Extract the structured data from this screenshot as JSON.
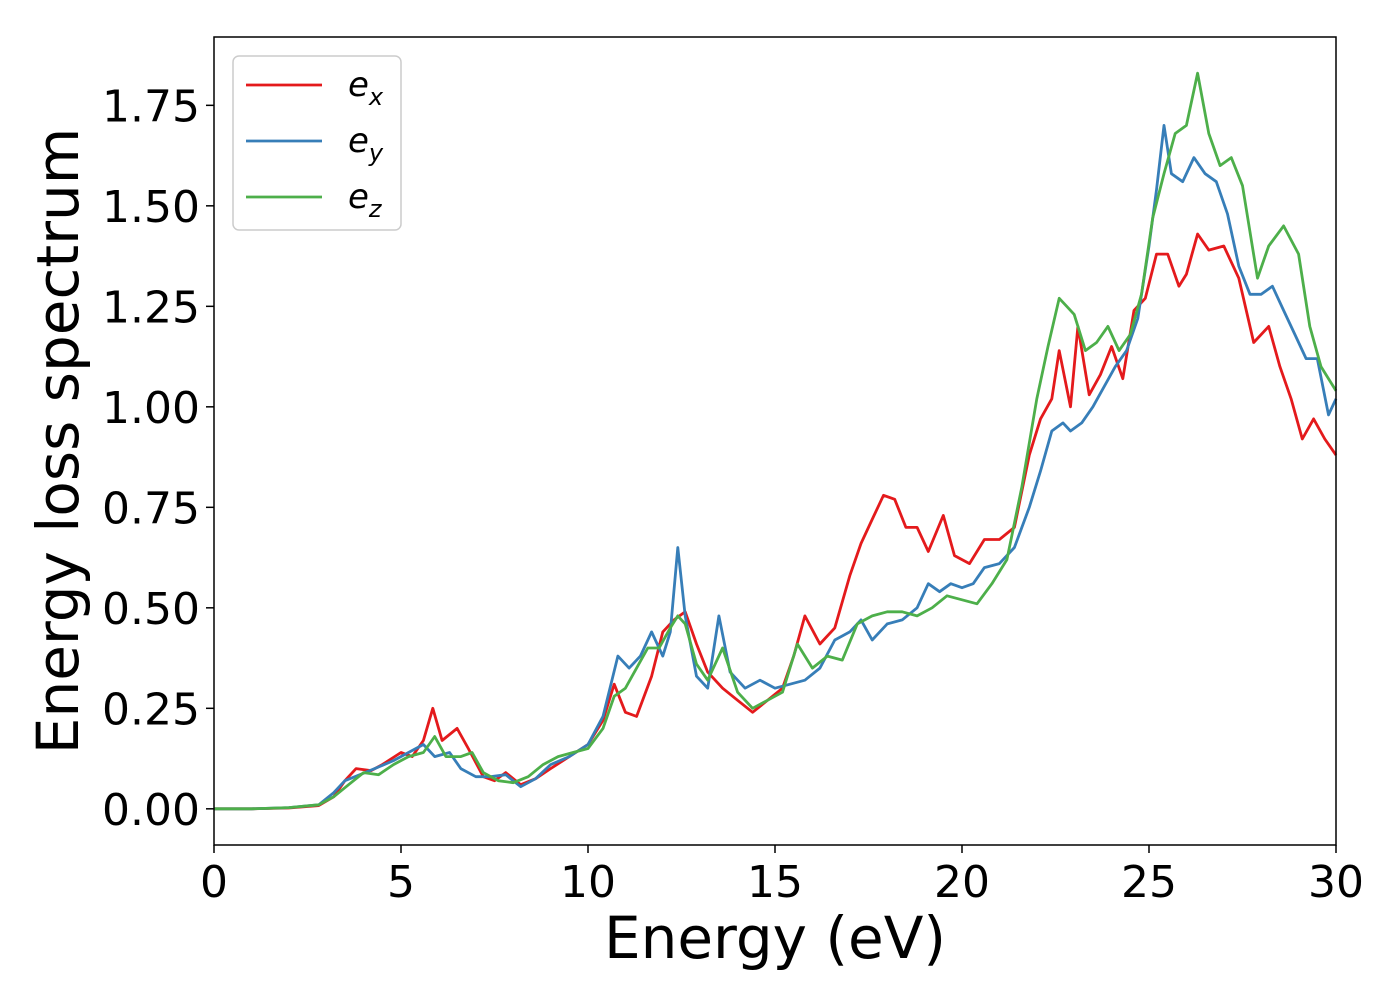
{
  "chart_data": {
    "type": "line",
    "title": "",
    "xlabel": "Energy (eV)",
    "ylabel": "Energy loss spectrum",
    "xlim": [
      0,
      30
    ],
    "ylim": [
      -0.09,
      1.92
    ],
    "xticks": [
      "0",
      "5",
      "10",
      "15",
      "20",
      "25",
      "30"
    ],
    "yticks": [
      "0.00",
      "0.25",
      "0.50",
      "0.75",
      "1.00",
      "1.25",
      "1.50",
      "1.75"
    ],
    "grid": false,
    "legend_position": "top-left",
    "series": [
      {
        "name": "e",
        "sub": "x",
        "color": "#e41a1c",
        "points": [
          [
            0,
            0
          ],
          [
            1,
            0
          ],
          [
            2,
            0.002
          ],
          [
            2.8,
            0.008
          ],
          [
            3.2,
            0.03
          ],
          [
            3.5,
            0.07
          ],
          [
            3.8,
            0.1
          ],
          [
            4.2,
            0.095
          ],
          [
            4.5,
            0.11
          ],
          [
            5.0,
            0.14
          ],
          [
            5.3,
            0.13
          ],
          [
            5.6,
            0.17
          ],
          [
            5.85,
            0.25
          ],
          [
            6.1,
            0.17
          ],
          [
            6.5,
            0.2
          ],
          [
            6.8,
            0.15
          ],
          [
            7.2,
            0.08
          ],
          [
            7.5,
            0.07
          ],
          [
            7.8,
            0.09
          ],
          [
            8.2,
            0.06
          ],
          [
            8.6,
            0.075
          ],
          [
            9.0,
            0.1
          ],
          [
            9.5,
            0.13
          ],
          [
            10.0,
            0.16
          ],
          [
            10.4,
            0.22
          ],
          [
            10.7,
            0.31
          ],
          [
            11.0,
            0.24
          ],
          [
            11.3,
            0.23
          ],
          [
            11.7,
            0.33
          ],
          [
            12.0,
            0.44
          ],
          [
            12.3,
            0.47
          ],
          [
            12.6,
            0.49
          ],
          [
            12.9,
            0.41
          ],
          [
            13.2,
            0.34
          ],
          [
            13.6,
            0.3
          ],
          [
            14.0,
            0.27
          ],
          [
            14.4,
            0.24
          ],
          [
            14.8,
            0.27
          ],
          [
            15.2,
            0.3
          ],
          [
            15.5,
            0.38
          ],
          [
            15.8,
            0.48
          ],
          [
            16.2,
            0.41
          ],
          [
            16.6,
            0.45
          ],
          [
            17.0,
            0.58
          ],
          [
            17.3,
            0.66
          ],
          [
            17.6,
            0.72
          ],
          [
            17.9,
            0.78
          ],
          [
            18.2,
            0.77
          ],
          [
            18.5,
            0.7
          ],
          [
            18.8,
            0.7
          ],
          [
            19.1,
            0.64
          ],
          [
            19.5,
            0.73
          ],
          [
            19.8,
            0.63
          ],
          [
            20.2,
            0.61
          ],
          [
            20.6,
            0.67
          ],
          [
            21.0,
            0.67
          ],
          [
            21.4,
            0.7
          ],
          [
            21.8,
            0.88
          ],
          [
            22.1,
            0.97
          ],
          [
            22.4,
            1.02
          ],
          [
            22.6,
            1.14
          ],
          [
            22.9,
            1.0
          ],
          [
            23.1,
            1.2
          ],
          [
            23.4,
            1.03
          ],
          [
            23.7,
            1.08
          ],
          [
            24.0,
            1.15
          ],
          [
            24.3,
            1.07
          ],
          [
            24.6,
            1.24
          ],
          [
            24.9,
            1.27
          ],
          [
            25.2,
            1.38
          ],
          [
            25.5,
            1.38
          ],
          [
            25.8,
            1.3
          ],
          [
            26.0,
            1.33
          ],
          [
            26.3,
            1.43
          ],
          [
            26.6,
            1.39
          ],
          [
            27.0,
            1.4
          ],
          [
            27.4,
            1.32
          ],
          [
            27.8,
            1.16
          ],
          [
            28.2,
            1.2
          ],
          [
            28.5,
            1.1
          ],
          [
            28.8,
            1.02
          ],
          [
            29.1,
            0.92
          ],
          [
            29.4,
            0.97
          ],
          [
            29.7,
            0.92
          ],
          [
            30.0,
            0.88
          ]
        ]
      },
      {
        "name": "e",
        "sub": "y",
        "color": "#377eb8",
        "points": [
          [
            0,
            0
          ],
          [
            1,
            0
          ],
          [
            2,
            0.003
          ],
          [
            2.8,
            0.01
          ],
          [
            3.2,
            0.04
          ],
          [
            3.5,
            0.07
          ],
          [
            3.9,
            0.085
          ],
          [
            4.3,
            0.1
          ],
          [
            4.8,
            0.12
          ],
          [
            5.2,
            0.14
          ],
          [
            5.6,
            0.16
          ],
          [
            5.9,
            0.13
          ],
          [
            6.3,
            0.14
          ],
          [
            6.6,
            0.1
          ],
          [
            7.0,
            0.08
          ],
          [
            7.4,
            0.08
          ],
          [
            7.8,
            0.085
          ],
          [
            8.2,
            0.055
          ],
          [
            8.6,
            0.075
          ],
          [
            9.0,
            0.11
          ],
          [
            9.5,
            0.13
          ],
          [
            10.0,
            0.16
          ],
          [
            10.4,
            0.23
          ],
          [
            10.8,
            0.38
          ],
          [
            11.1,
            0.35
          ],
          [
            11.4,
            0.38
          ],
          [
            11.7,
            0.44
          ],
          [
            12.0,
            0.38
          ],
          [
            12.2,
            0.44
          ],
          [
            12.4,
            0.65
          ],
          [
            12.6,
            0.48
          ],
          [
            12.9,
            0.33
          ],
          [
            13.2,
            0.3
          ],
          [
            13.5,
            0.48
          ],
          [
            13.8,
            0.34
          ],
          [
            14.2,
            0.3
          ],
          [
            14.6,
            0.32
          ],
          [
            15.0,
            0.3
          ],
          [
            15.4,
            0.31
          ],
          [
            15.8,
            0.32
          ],
          [
            16.2,
            0.35
          ],
          [
            16.6,
            0.42
          ],
          [
            17.0,
            0.44
          ],
          [
            17.3,
            0.47
          ],
          [
            17.6,
            0.42
          ],
          [
            18.0,
            0.46
          ],
          [
            18.4,
            0.47
          ],
          [
            18.8,
            0.5
          ],
          [
            19.1,
            0.56
          ],
          [
            19.4,
            0.54
          ],
          [
            19.7,
            0.56
          ],
          [
            20.0,
            0.55
          ],
          [
            20.3,
            0.56
          ],
          [
            20.6,
            0.6
          ],
          [
            21.0,
            0.61
          ],
          [
            21.4,
            0.65
          ],
          [
            21.8,
            0.75
          ],
          [
            22.1,
            0.84
          ],
          [
            22.4,
            0.94
          ],
          [
            22.7,
            0.96
          ],
          [
            22.9,
            0.94
          ],
          [
            23.2,
            0.96
          ],
          [
            23.5,
            1.0
          ],
          [
            23.8,
            1.05
          ],
          [
            24.1,
            1.1
          ],
          [
            24.4,
            1.14
          ],
          [
            24.7,
            1.22
          ],
          [
            25.0,
            1.4
          ],
          [
            25.2,
            1.54
          ],
          [
            25.4,
            1.7
          ],
          [
            25.6,
            1.58
          ],
          [
            25.9,
            1.56
          ],
          [
            26.2,
            1.62
          ],
          [
            26.5,
            1.58
          ],
          [
            26.8,
            1.56
          ],
          [
            27.1,
            1.48
          ],
          [
            27.4,
            1.35
          ],
          [
            27.7,
            1.28
          ],
          [
            28.0,
            1.28
          ],
          [
            28.3,
            1.3
          ],
          [
            28.6,
            1.24
          ],
          [
            28.9,
            1.18
          ],
          [
            29.2,
            1.12
          ],
          [
            29.5,
            1.12
          ],
          [
            29.8,
            0.98
          ],
          [
            30.0,
            1.02
          ]
        ]
      },
      {
        "name": "e",
        "sub": "z",
        "color": "#4daf4a",
        "points": [
          [
            0,
            0
          ],
          [
            1,
            0
          ],
          [
            2,
            0.003
          ],
          [
            2.8,
            0.01
          ],
          [
            3.2,
            0.03
          ],
          [
            3.6,
            0.06
          ],
          [
            4.0,
            0.09
          ],
          [
            4.4,
            0.085
          ],
          [
            4.8,
            0.11
          ],
          [
            5.2,
            0.13
          ],
          [
            5.6,
            0.14
          ],
          [
            5.9,
            0.18
          ],
          [
            6.2,
            0.13
          ],
          [
            6.6,
            0.13
          ],
          [
            6.9,
            0.14
          ],
          [
            7.2,
            0.09
          ],
          [
            7.6,
            0.07
          ],
          [
            8.0,
            0.065
          ],
          [
            8.4,
            0.08
          ],
          [
            8.8,
            0.11
          ],
          [
            9.2,
            0.13
          ],
          [
            9.6,
            0.14
          ],
          [
            10.0,
            0.15
          ],
          [
            10.4,
            0.2
          ],
          [
            10.7,
            0.28
          ],
          [
            11.0,
            0.3
          ],
          [
            11.3,
            0.35
          ],
          [
            11.6,
            0.4
          ],
          [
            11.9,
            0.4
          ],
          [
            12.2,
            0.45
          ],
          [
            12.4,
            0.48
          ],
          [
            12.6,
            0.46
          ],
          [
            12.9,
            0.36
          ],
          [
            13.2,
            0.32
          ],
          [
            13.6,
            0.4
          ],
          [
            14.0,
            0.29
          ],
          [
            14.4,
            0.25
          ],
          [
            14.8,
            0.27
          ],
          [
            15.2,
            0.29
          ],
          [
            15.6,
            0.41
          ],
          [
            16.0,
            0.35
          ],
          [
            16.4,
            0.38
          ],
          [
            16.8,
            0.37
          ],
          [
            17.2,
            0.46
          ],
          [
            17.6,
            0.48
          ],
          [
            18.0,
            0.49
          ],
          [
            18.4,
            0.49
          ],
          [
            18.8,
            0.48
          ],
          [
            19.2,
            0.5
          ],
          [
            19.6,
            0.53
          ],
          [
            20.0,
            0.52
          ],
          [
            20.4,
            0.51
          ],
          [
            20.8,
            0.56
          ],
          [
            21.2,
            0.62
          ],
          [
            21.6,
            0.8
          ],
          [
            22.0,
            1.02
          ],
          [
            22.3,
            1.15
          ],
          [
            22.6,
            1.27
          ],
          [
            22.8,
            1.25
          ],
          [
            23.0,
            1.23
          ],
          [
            23.3,
            1.14
          ],
          [
            23.6,
            1.16
          ],
          [
            23.9,
            1.2
          ],
          [
            24.2,
            1.14
          ],
          [
            24.5,
            1.18
          ],
          [
            24.8,
            1.28
          ],
          [
            25.1,
            1.47
          ],
          [
            25.4,
            1.58
          ],
          [
            25.7,
            1.68
          ],
          [
            26.0,
            1.7
          ],
          [
            26.3,
            1.83
          ],
          [
            26.6,
            1.68
          ],
          [
            26.9,
            1.6
          ],
          [
            27.2,
            1.62
          ],
          [
            27.5,
            1.55
          ],
          [
            27.9,
            1.32
          ],
          [
            28.2,
            1.4
          ],
          [
            28.6,
            1.45
          ],
          [
            29.0,
            1.38
          ],
          [
            29.3,
            1.2
          ],
          [
            29.6,
            1.1
          ],
          [
            30.0,
            1.04
          ]
        ]
      }
    ]
  }
}
